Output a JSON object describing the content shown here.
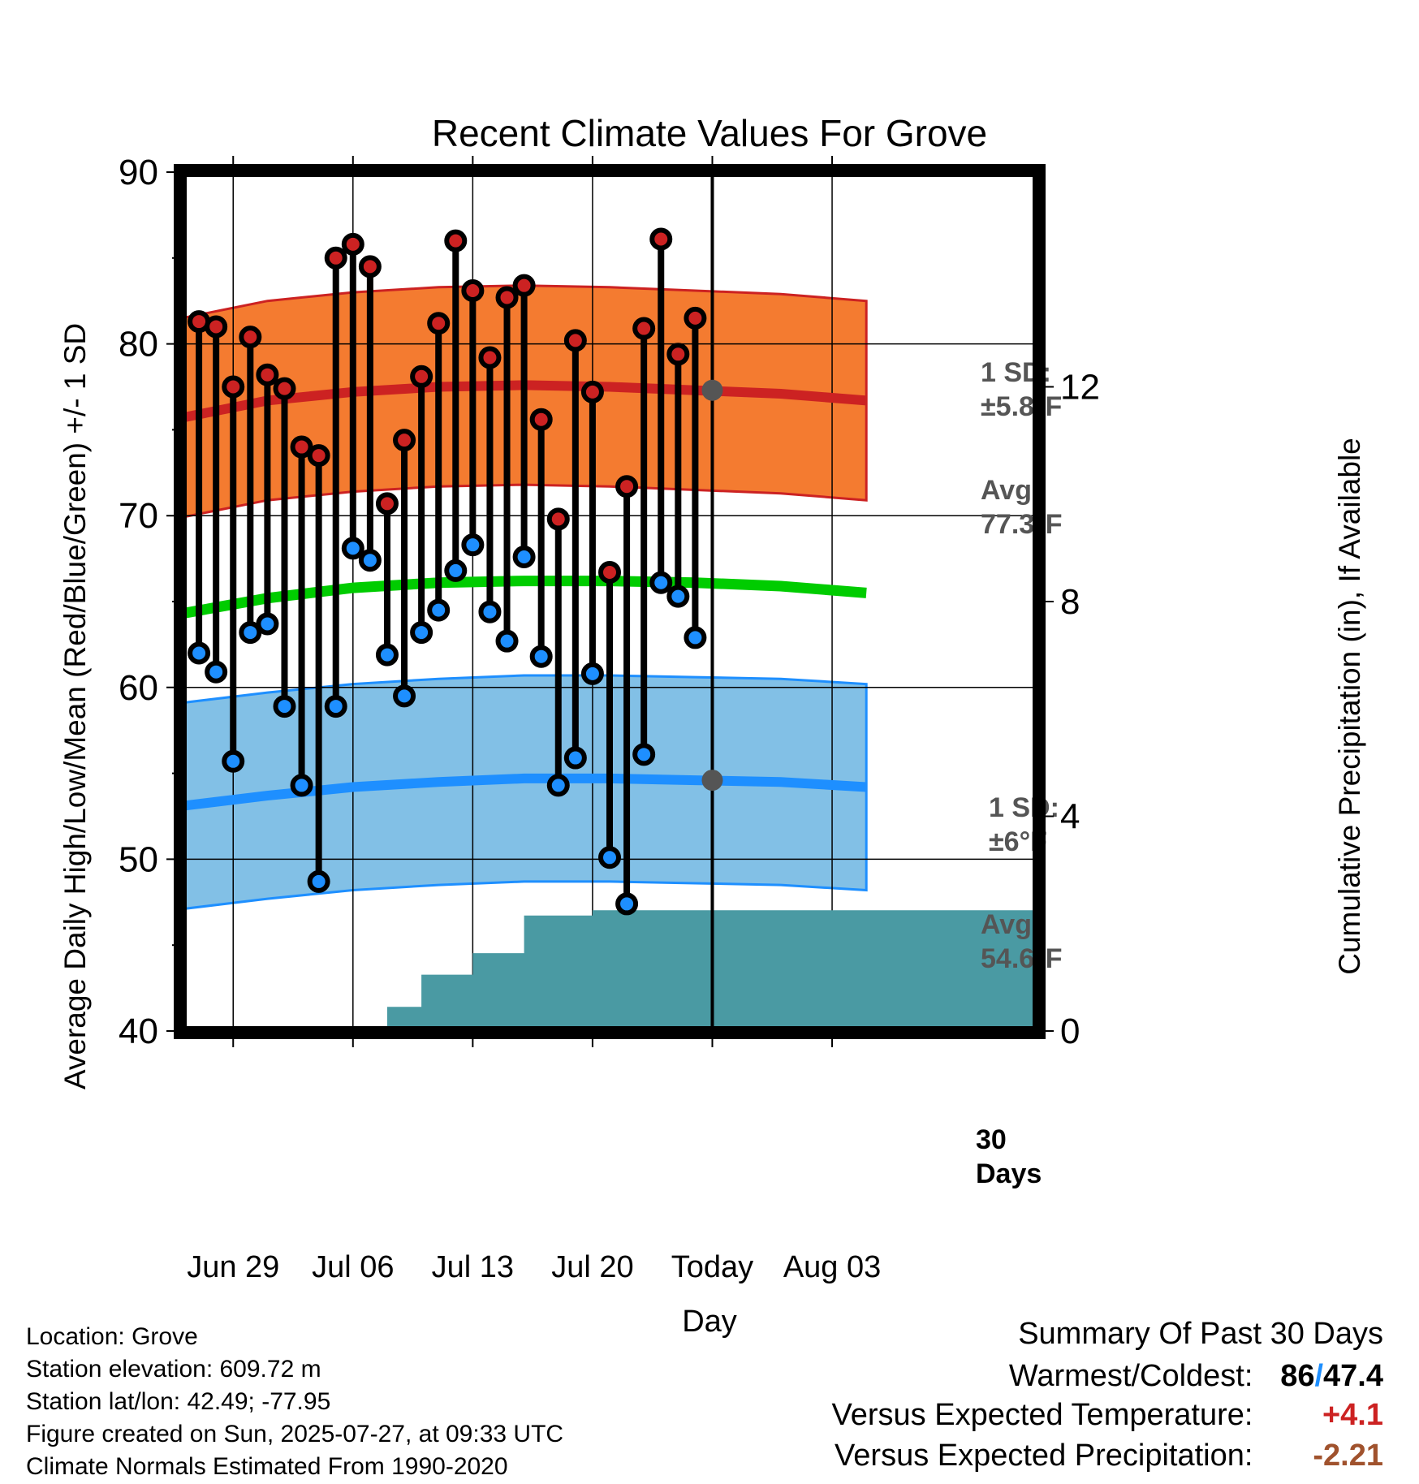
{
  "chart_data": {
    "type": "line",
    "title": "Recent Climate Values For Grove",
    "xlabel": "Day",
    "ylabel": "Average Daily High/Low/Mean (Red/Blue/Green) +/- 1 SD",
    "y2label": "Cumulative Precipitation (in), If Available",
    "x_tick_labels": [
      "Jun 29",
      "Jul 06",
      "Jul 13",
      "Jul 20",
      "Today",
      "Aug 03"
    ],
    "y_ticks": [
      40,
      50,
      60,
      70,
      80,
      90
    ],
    "y2_ticks": [
      0,
      4,
      8,
      12
    ],
    "ylim": [
      40,
      90
    ],
    "grid": true,
    "days": [
      "Jun 27",
      "Jun 28",
      "Jun 29",
      "Jun 30",
      "Jul 01",
      "Jul 02",
      "Jul 03",
      "Jul 04",
      "Jul 05",
      "Jul 06",
      "Jul 07",
      "Jul 08",
      "Jul 09",
      "Jul 10",
      "Jul 11",
      "Jul 12",
      "Jul 13",
      "Jul 14",
      "Jul 15",
      "Jul 16",
      "Jul 17",
      "Jul 18",
      "Jul 19",
      "Jul 20",
      "Jul 21",
      "Jul 22",
      "Jul 23",
      "Jul 24",
      "Jul 25",
      "Jul 26"
    ],
    "daily_high": [
      81.3,
      81.0,
      77.5,
      80.4,
      78.2,
      77.4,
      74.0,
      73.5,
      85.0,
      85.8,
      84.5,
      70.7,
      74.4,
      78.1,
      81.2,
      86.0,
      83.1,
      79.2,
      82.7,
      83.4,
      75.6,
      69.8,
      80.2,
      77.2,
      66.7,
      71.7,
      80.9,
      86.1,
      79.4,
      81.5
    ],
    "daily_low": [
      62.0,
      60.9,
      55.7,
      63.2,
      63.7,
      58.9,
      54.3,
      48.7,
      58.9,
      68.1,
      67.4,
      61.9,
      59.5,
      63.2,
      64.5,
      66.8,
      68.3,
      64.4,
      62.7,
      67.6,
      61.8,
      54.3,
      55.9,
      60.8,
      50.1,
      47.4,
      56.1,
      66.1,
      65.3,
      62.9
    ],
    "normal_x": [
      "Jun 26",
      "Jul 01",
      "Jul 06",
      "Jul 11",
      "Jul 16",
      "Jul 21",
      "Jul 26",
      "Jul 31",
      "Aug 05"
    ],
    "normal_high": [
      75.7,
      76.7,
      77.2,
      77.5,
      77.6,
      77.5,
      77.3,
      77.1,
      76.7
    ],
    "normal_high_sd": 5.8,
    "normal_low": [
      53.1,
      53.7,
      54.2,
      54.5,
      54.7,
      54.7,
      54.6,
      54.5,
      54.2
    ],
    "normal_low_sd": 6.0,
    "normal_mean": [
      64.3,
      65.2,
      65.8,
      66.1,
      66.2,
      66.2,
      66.1,
      65.9,
      65.5
    ],
    "precip_x": [
      "Jun 26",
      "Jun 29",
      "Jul 02",
      "Jul 03",
      "Jul 04",
      "Jul 05",
      "Jul 06",
      "Jul 07",
      "Jul 08",
      "Jul 09",
      "Jul 10",
      "Jul 11",
      "Jul 12",
      "Jul 13",
      "Jul 14",
      "Jul 15",
      "Jul 16",
      "Jul 17",
      "Jul 18",
      "Jul 19",
      "Jul 20",
      "Jul 21",
      "Jul 22",
      "Jul 23",
      "Jul 24",
      "Jul 25",
      "Jul 26",
      "Aug 05"
    ],
    "cumulative_precip": [
      0,
      0,
      0,
      0.05,
      0.05,
      0.05,
      0.05,
      0.05,
      0.45,
      0.45,
      1.05,
      1.05,
      1.05,
      1.45,
      1.45,
      1.45,
      2.15,
      2.15,
      2.15,
      2.15,
      2.25,
      2.25,
      2.25,
      2.25,
      2.25,
      2.25,
      2.25,
      2.25
    ],
    "today_high_avg": 77.3,
    "today_low_avg": 54.6,
    "annotations": {
      "high_sd": [
        "1 SD:",
        "±5.8°F"
      ],
      "high_avg": [
        "Avg:",
        "77.3°F"
      ],
      "low_sd": [
        "1 SD:",
        "±6°F"
      ],
      "low_avg": [
        "Avg:",
        "54.6°F"
      ],
      "period": [
        "30",
        "Days"
      ]
    },
    "colors": {
      "high_band": "#f47b30",
      "high_line": "#cc2222",
      "low_band": "#82c0e6",
      "low_line": "#1e8fff",
      "mean_line": "#00cc00",
      "precip_fill": "#4a9aa3",
      "high_marker": "#cc2222",
      "low_marker": "#1e8fff",
      "annotation": "#555555"
    }
  },
  "footer": {
    "location": "Location: Grove",
    "elevation": "Station elevation: 609.72 m",
    "latlon": "Station lat/lon: 42.49; -77.95",
    "created": "Figure created on Sun, 2025-07-27, at 09:33 UTC",
    "normals": "Climate Normals Estimated From 1990-2020"
  },
  "summary": {
    "title": "Summary Of Past 30 Days",
    "warm_label": "Warmest/Coldest:",
    "warm_value_high": "86",
    "warm_value_sep": "/",
    "warm_value_low": "47.4",
    "temp_label": "Versus Expected Temperature:",
    "temp_value": "+4.1",
    "precip_label": "Versus Expected Precipitation:",
    "precip_value": "-2.21",
    "temp_color": "#cc2222",
    "precip_color": "#a0522d"
  }
}
